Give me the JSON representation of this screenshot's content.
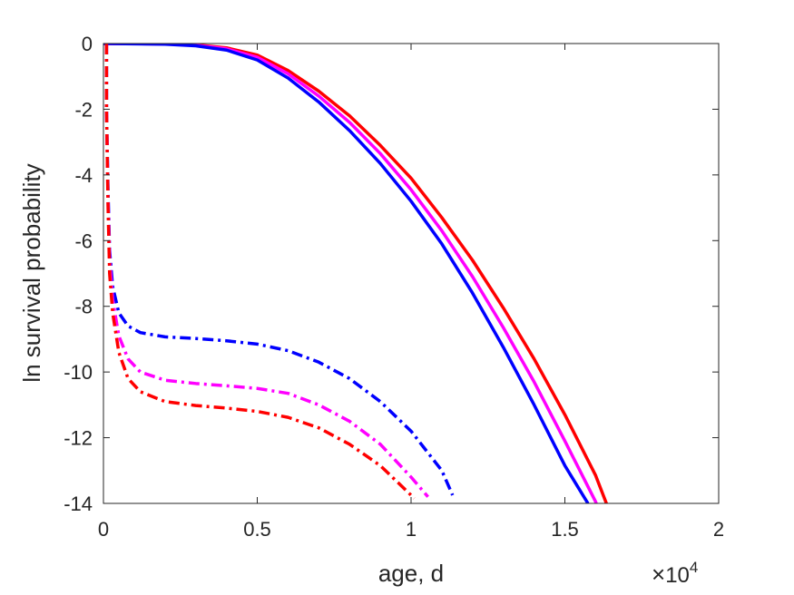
{
  "chart_data": {
    "type": "line",
    "xlabel": "age, d",
    "ylabel": "ln survival probability",
    "x_exponent_label": {
      "base": "10",
      "exp": "4",
      "prefix": "×"
    },
    "xlim": [
      0,
      2
    ],
    "ylim": [
      -14,
      0
    ],
    "xticks": [
      0,
      0.5,
      1,
      1.5,
      2
    ],
    "xtick_labels": [
      "0",
      "0.5",
      "1",
      "1.5",
      "2"
    ],
    "yticks": [
      0,
      -2,
      -4,
      -6,
      -8,
      -10,
      -12,
      -14
    ],
    "ytick_labels": [
      "0",
      "-2",
      "-4",
      "-6",
      "-8",
      "-10",
      "-12",
      "-14"
    ],
    "grid": false,
    "legend": "none",
    "series": [
      {
        "color": "#ff0000",
        "style": "solid",
        "points": [
          [
            0,
            0
          ],
          [
            0.2,
            -0.01
          ],
          [
            0.3,
            -0.04
          ],
          [
            0.4,
            -0.13
          ],
          [
            0.5,
            -0.35
          ],
          [
            0.6,
            -0.82
          ],
          [
            0.7,
            -1.45
          ],
          [
            0.8,
            -2.2
          ],
          [
            0.9,
            -3.1
          ],
          [
            1.0,
            -4.1
          ],
          [
            1.1,
            -5.3
          ],
          [
            1.2,
            -6.6
          ],
          [
            1.3,
            -8.05
          ],
          [
            1.4,
            -9.6
          ],
          [
            1.5,
            -11.3
          ],
          [
            1.6,
            -13.15
          ],
          [
            1.635,
            -14
          ]
        ]
      },
      {
        "color": "#ff00ff",
        "style": "solid",
        "points": [
          [
            0,
            0
          ],
          [
            0.2,
            -0.01
          ],
          [
            0.3,
            -0.05
          ],
          [
            0.4,
            -0.16
          ],
          [
            0.5,
            -0.42
          ],
          [
            0.6,
            -0.92
          ],
          [
            0.7,
            -1.6
          ],
          [
            0.8,
            -2.4
          ],
          [
            0.9,
            -3.35
          ],
          [
            1.0,
            -4.45
          ],
          [
            1.1,
            -5.7
          ],
          [
            1.2,
            -7.1
          ],
          [
            1.3,
            -8.65
          ],
          [
            1.4,
            -10.3
          ],
          [
            1.5,
            -12.1
          ],
          [
            1.6,
            -13.95
          ],
          [
            1.602,
            -14
          ]
        ]
      },
      {
        "color": "#0000ff",
        "style": "solid",
        "points": [
          [
            0,
            0
          ],
          [
            0.2,
            -0.02
          ],
          [
            0.3,
            -0.07
          ],
          [
            0.4,
            -0.2
          ],
          [
            0.5,
            -0.5
          ],
          [
            0.6,
            -1.05
          ],
          [
            0.7,
            -1.78
          ],
          [
            0.8,
            -2.65
          ],
          [
            0.9,
            -3.65
          ],
          [
            1.0,
            -4.8
          ],
          [
            1.1,
            -6.1
          ],
          [
            1.2,
            -7.6
          ],
          [
            1.3,
            -9.25
          ],
          [
            1.4,
            -11.0
          ],
          [
            1.5,
            -12.85
          ],
          [
            1.575,
            -14
          ]
        ]
      },
      {
        "color": "#0000ff",
        "style": "dashdot",
        "points": [
          [
            0.01,
            0
          ],
          [
            0.01,
            -2.0
          ],
          [
            0.015,
            -4.5
          ],
          [
            0.02,
            -6.3
          ],
          [
            0.03,
            -7.4
          ],
          [
            0.05,
            -8.2
          ],
          [
            0.08,
            -8.6
          ],
          [
            0.12,
            -8.8
          ],
          [
            0.2,
            -8.93
          ],
          [
            0.3,
            -8.98
          ],
          [
            0.4,
            -9.05
          ],
          [
            0.5,
            -9.15
          ],
          [
            0.6,
            -9.35
          ],
          [
            0.7,
            -9.7
          ],
          [
            0.8,
            -10.2
          ],
          [
            0.9,
            -10.9
          ],
          [
            1.0,
            -11.8
          ],
          [
            1.1,
            -13.0
          ],
          [
            1.135,
            -13.75
          ]
        ]
      },
      {
        "color": "#ff00ff",
        "style": "dashdot",
        "points": [
          [
            0.01,
            0
          ],
          [
            0.01,
            -2.0
          ],
          [
            0.015,
            -4.8
          ],
          [
            0.02,
            -6.6
          ],
          [
            0.03,
            -7.8
          ],
          [
            0.05,
            -8.9
          ],
          [
            0.08,
            -9.6
          ],
          [
            0.12,
            -10.0
          ],
          [
            0.2,
            -10.25
          ],
          [
            0.3,
            -10.35
          ],
          [
            0.4,
            -10.42
          ],
          [
            0.5,
            -10.5
          ],
          [
            0.6,
            -10.65
          ],
          [
            0.7,
            -11.0
          ],
          [
            0.8,
            -11.5
          ],
          [
            0.9,
            -12.2
          ],
          [
            1.0,
            -13.2
          ],
          [
            1.055,
            -13.8
          ]
        ]
      },
      {
        "color": "#ff0000",
        "style": "dashdot",
        "points": [
          [
            0.01,
            0
          ],
          [
            0.01,
            -2.0
          ],
          [
            0.015,
            -5.0
          ],
          [
            0.02,
            -7.0
          ],
          [
            0.03,
            -8.2
          ],
          [
            0.05,
            -9.4
          ],
          [
            0.08,
            -10.2
          ],
          [
            0.12,
            -10.6
          ],
          [
            0.2,
            -10.9
          ],
          [
            0.3,
            -11.02
          ],
          [
            0.4,
            -11.1
          ],
          [
            0.5,
            -11.2
          ],
          [
            0.6,
            -11.38
          ],
          [
            0.7,
            -11.7
          ],
          [
            0.8,
            -12.2
          ],
          [
            0.9,
            -12.85
          ],
          [
            1.0,
            -13.75
          ],
          [
            1.01,
            -13.85
          ]
        ]
      }
    ]
  }
}
